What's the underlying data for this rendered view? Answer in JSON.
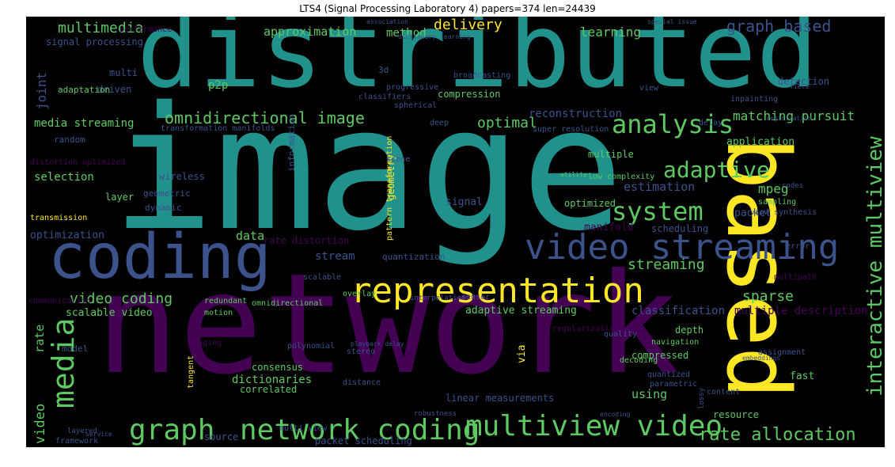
{
  "title": "LTS4 (Signal Processing Laboratory 4) papers=374 len=24439",
  "palette": {
    "background": "#000000",
    "purple": "#440154",
    "indigo": "#3b528b",
    "teal": "#21918c",
    "green": "#5ec962",
    "yellow": "#fde725",
    "title_color": "#000000"
  },
  "words": [
    "distributed",
    "image",
    "network",
    "coding",
    "based",
    "representation",
    "video streaming",
    "multiview video",
    "graph",
    "network coding",
    "media",
    "analysis",
    "system",
    "adaptive",
    "interactive multiview",
    "rate allocation",
    "omnidirectional image",
    "graph based",
    "multimedia",
    "optimal",
    "video coding",
    "streaming",
    "sparse",
    "matching pursuit",
    "delivery",
    "learning",
    "approximation",
    "method",
    "joint",
    "media streaming",
    "reconstruction",
    "application",
    "selection",
    "mpeg",
    "estimation",
    "packet",
    "data",
    "optimization",
    "stream",
    "rate distortion",
    "layer",
    "signal",
    "multiple",
    "manifold",
    "scheduling",
    "geometry",
    "via",
    "using",
    "classification",
    "multiple description",
    "adaptive streaming",
    "compressed",
    "dictionaries",
    "correlated",
    "consensus",
    "resource",
    "fast",
    "source",
    "framework",
    "packet scheduling",
    "multi view",
    "robustness",
    "scalable video",
    "video",
    "rate",
    "motion",
    "redundant",
    "overlay",
    "omnidirectional",
    "compression",
    "progressive",
    "classifiers",
    "spherical",
    "3d",
    "p2p",
    "multi",
    "driven",
    "adaptation",
    "signal processing",
    "transmission",
    "wireless",
    "geometric",
    "dynamic",
    "random",
    "deep",
    "distortion optimized",
    "transformation manifolds",
    "super resolution",
    "optimized",
    "quantization",
    "sensor",
    "depth",
    "navigation",
    "quality",
    "scalable",
    "error",
    "multipath",
    "information",
    "pattern transformation",
    "detection",
    "communication",
    "model",
    "imaging",
    "low complexity",
    "content",
    "decoding",
    "parametric",
    "stereo",
    "distance",
    "delay",
    "sampling",
    "view synthesis",
    "performance",
    "association",
    "special issue",
    "dictionary learning",
    "broadcasting",
    "view",
    "field",
    "inpainting",
    "registration",
    "scene",
    "utility",
    "interpolation",
    "tangent",
    "assignment",
    "playback delay",
    "polynomial",
    "regularization",
    "quantized",
    "codes",
    "linear measurements",
    "layered",
    "service",
    "lossy",
    "encoding",
    "embeddings"
  ]
}
